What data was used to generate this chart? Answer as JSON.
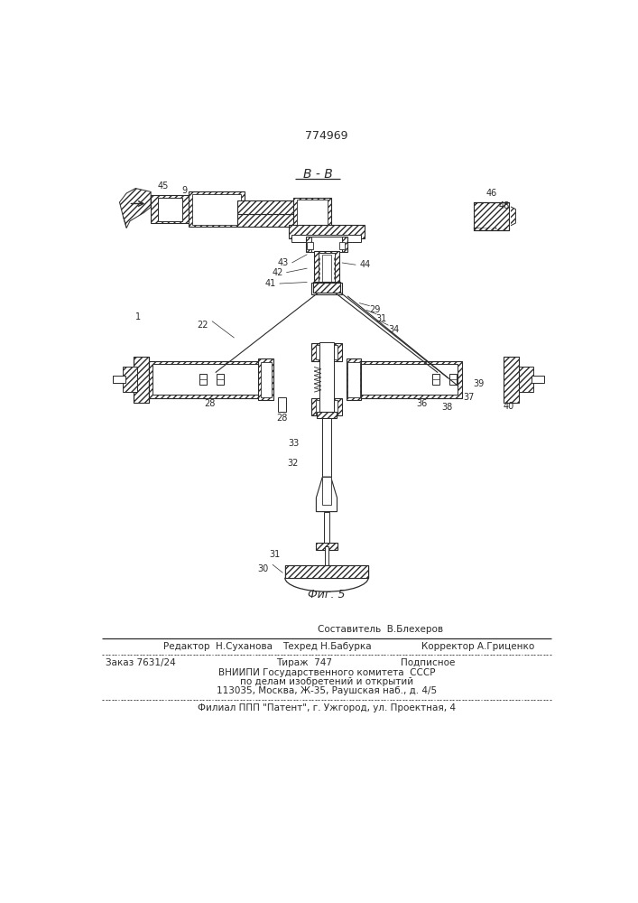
{
  "patent_number": "774969",
  "section_label": "В - В",
  "fig_label": "Фиг. 5",
  "bg_color": "#ffffff",
  "line_color": "#2a2a2a",
  "footer": {
    "line0": "Составитель  В.Блехеров",
    "line1_left": "Редактор  Н.Суханова",
    "line1_mid": "Техред Н.Бабурка",
    "line1_right": "Корректор А.Гриценко",
    "line2_left": "Заказ 7631/24",
    "line2_mid": "Тираж  747",
    "line2_right": "Подписное",
    "line3": "ВНИИПИ Государственного комитета  СССР",
    "line4": "по делам изобретений и открытий",
    "line5": "113035, Москва, Ж-35, Раушская наб., д. 4/5",
    "line6": "Филиал ППП \"Патент\", г. Ужгород, ул. Проектная, 4"
  }
}
